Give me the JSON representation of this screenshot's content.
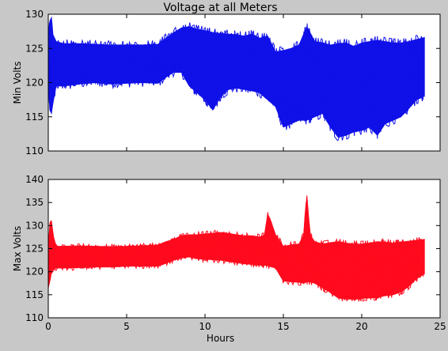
{
  "chart_data": [
    {
      "type": "line",
      "title": "Voltage at all Meters",
      "xlabel": "",
      "ylabel": "Min Volts",
      "xlim": [
        0,
        25
      ],
      "ylim": [
        110,
        130
      ],
      "xticks": [
        0,
        5,
        10,
        15,
        20,
        25
      ],
      "yticks": [
        110,
        115,
        120,
        125,
        130
      ],
      "grid": false,
      "series_style": {
        "color": "#1010e8",
        "count": "many meter traces"
      },
      "envelope": {
        "x": [
          0,
          0.1,
          0.2,
          0.3,
          0.5,
          1,
          2,
          3,
          4,
          5,
          6,
          7,
          7.5,
          8,
          8.5,
          9,
          9.5,
          10,
          10.5,
          11,
          11.5,
          12,
          12.5,
          13,
          13.5,
          14,
          14.5,
          15,
          15.5,
          16,
          16.5,
          17,
          17.5,
          18,
          18.5,
          19,
          19.5,
          20,
          20.5,
          21,
          21.5,
          22,
          22.5,
          23,
          23.5,
          24
        ],
        "upper": [
          126,
          129,
          129.5,
          127,
          126,
          125.7,
          125.7,
          125.6,
          125.5,
          125.5,
          125.5,
          125.6,
          126.5,
          127.3,
          128,
          128.2,
          127.8,
          127.6,
          127.3,
          127.2,
          127.1,
          127,
          126.8,
          127.1,
          126.5,
          126.8,
          124.5,
          124.7,
          125,
          125.5,
          128.2,
          126,
          125.8,
          125.5,
          125.7,
          125.8,
          125.3,
          125.8,
          126,
          126.2,
          126,
          125.8,
          125.8,
          126,
          126.3,
          126.6
        ],
        "lower": [
          120,
          116,
          115.5,
          117,
          119.5,
          119.5,
          119.8,
          120,
          119.8,
          119.9,
          120,
          119.9,
          120.8,
          121.5,
          121.5,
          119.5,
          118.5,
          117.5,
          116,
          118,
          119,
          119.2,
          119,
          118.8,
          118.5,
          117.5,
          116.5,
          113.5,
          114,
          114.5,
          114.5,
          115,
          115.5,
          113.5,
          112,
          112.3,
          112.8,
          113,
          113.5,
          112.3,
          114,
          114.5,
          115,
          116.2,
          117.5,
          118
        ]
      }
    },
    {
      "type": "line",
      "title": "",
      "xlabel": "Hours",
      "ylabel": "Max Volts",
      "xlim": [
        0,
        25
      ],
      "ylim": [
        110,
        140
      ],
      "xticks": [
        0,
        5,
        10,
        15,
        20,
        25
      ],
      "yticks": [
        110,
        115,
        120,
        125,
        130,
        135,
        140
      ],
      "grid": false,
      "series_style": {
        "color": "#ff0a1e",
        "count": "many meter traces"
      },
      "envelope": {
        "x": [
          0,
          0.1,
          0.2,
          0.3,
          0.5,
          1,
          2,
          3,
          4,
          5,
          6,
          7,
          7.5,
          8,
          8.5,
          9,
          9.5,
          10,
          10.5,
          11,
          11.5,
          12,
          12.5,
          13,
          13.5,
          13.8,
          14,
          14.2,
          14.5,
          15,
          15.5,
          16,
          16.3,
          16.5,
          16.7,
          17,
          17.5,
          18,
          18.5,
          19,
          19.5,
          20,
          20.5,
          21,
          21.5,
          22,
          22.5,
          23,
          23.5,
          24
        ],
        "upper": [
          124,
          130.5,
          131,
          128,
          125.5,
          125.5,
          125.6,
          125.5,
          125.4,
          125.5,
          125.6,
          125.8,
          126.5,
          127,
          127.8,
          128,
          128,
          128.2,
          128.3,
          128.5,
          128.3,
          128,
          127.8,
          127.8,
          127.5,
          128,
          132.5,
          131,
          128,
          125.5,
          125.8,
          126,
          128,
          136.5,
          128,
          126.5,
          126,
          126.3,
          126.5,
          126.2,
          126,
          126,
          126.2,
          126.5,
          126.4,
          126.2,
          126.4,
          126.6,
          126.8,
          127
        ]
      },
      "lower": null,
      "lower_envelope": [
        116.5,
        118,
        120,
        120.5,
        120.8,
        120.8,
        120.9,
        121,
        121,
        121.2,
        121.2,
        121.2,
        121.8,
        122.5,
        123,
        123.2,
        122.8,
        122.7,
        122.6,
        122.5,
        122.2,
        122,
        121.7,
        121.6,
        121.4,
        121.4,
        121.3,
        121.1,
        120.8,
        118,
        117.8,
        117.7,
        117.5,
        117.8,
        117.8,
        117.5,
        116.5,
        115.5,
        114.3,
        114.1,
        114,
        114.2,
        114.3,
        114.4,
        114.8,
        115,
        115.6,
        116.8,
        118.5,
        119.5
      ]
    }
  ]
}
